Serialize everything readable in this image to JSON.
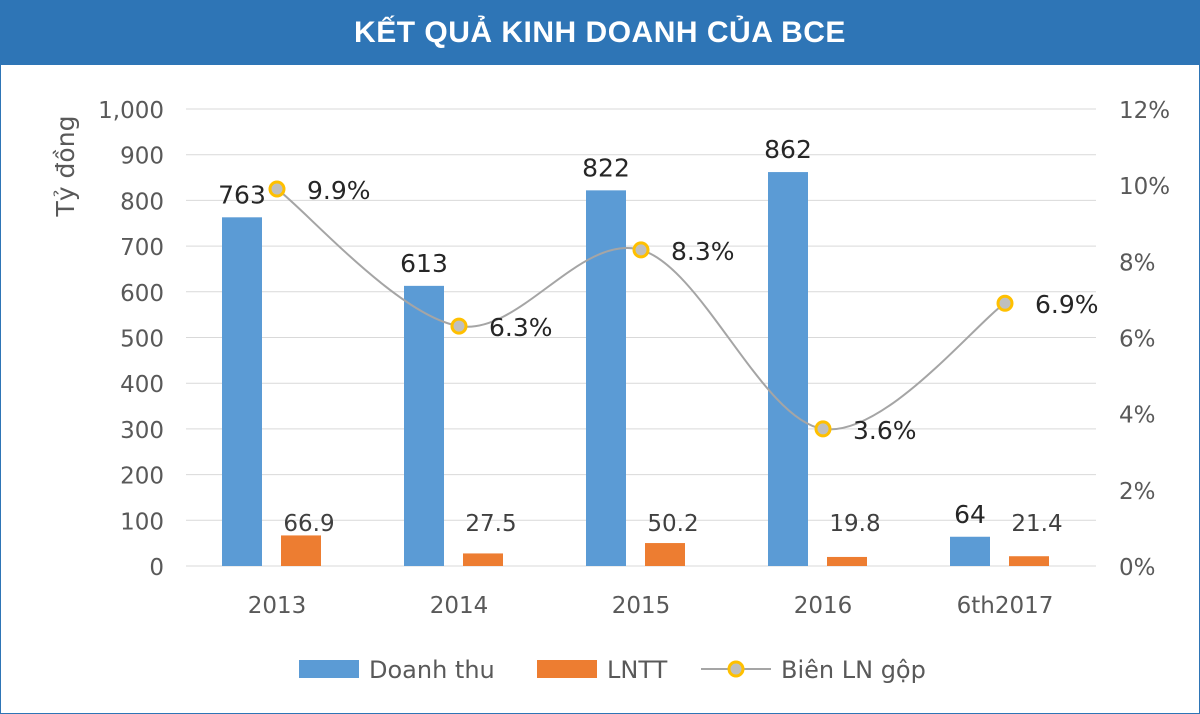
{
  "chart_data": {
    "title": "KẾT QUẢ KINH DOANH CỦA BCE",
    "type": "bar",
    "categories": [
      "2013",
      "2014",
      "2015",
      "2016",
      "6th2017"
    ],
    "series": [
      {
        "name": "Doanh thu",
        "type": "bar",
        "axis": "left",
        "color": "#5b9bd5",
        "values": [
          763,
          613,
          822,
          862,
          64
        ],
        "labels": [
          "763",
          "613",
          "822",
          "862",
          "64"
        ]
      },
      {
        "name": "LNTT",
        "type": "bar",
        "axis": "left",
        "color": "#ed7d31",
        "values": [
          66.9,
          27.5,
          50.2,
          19.8,
          21.4
        ],
        "labels": [
          "66.9",
          "27.5",
          "50.2",
          "19.8",
          "21.4"
        ]
      },
      {
        "name": "Biên LN gộp",
        "type": "line",
        "axis": "right",
        "color": "#a5a5a5",
        "marker_color": "#ffc000",
        "values": [
          9.9,
          6.3,
          8.3,
          3.6,
          6.9
        ],
        "labels": [
          "9.9%",
          "6.3%",
          "8.3%",
          "3.6%",
          "6.9%"
        ]
      }
    ],
    "ylabel": "Tỷ đồng",
    "ylim": [
      0,
      1000
    ],
    "yticks": [
      "0",
      "100",
      "200",
      "300",
      "400",
      "500",
      "600",
      "700",
      "800",
      "900",
      "1,000"
    ],
    "y2lim": [
      0,
      12
    ],
    "y2ticks": [
      "0%",
      "2%",
      "4%",
      "6%",
      "8%",
      "10%",
      "12%"
    ],
    "grid": true,
    "legend_position": "bottom"
  }
}
